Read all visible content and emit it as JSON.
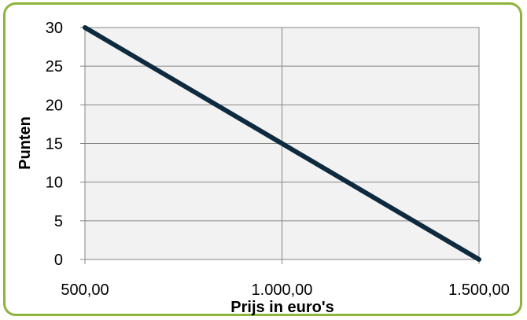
{
  "chart_data": {
    "type": "line",
    "title": "",
    "xlabel": "Prijs in euro's",
    "ylabel": "Punten",
    "x_ticks": [
      "500,00",
      "1.000,00",
      "1.500,00"
    ],
    "y_ticks": [
      "0",
      "5",
      "10",
      "15",
      "20",
      "25",
      "30"
    ],
    "xlim": [
      500,
      1500
    ],
    "ylim": [
      0,
      30
    ],
    "grid": true,
    "series": [
      {
        "x": [
          500,
          1000,
          1500
        ],
        "y": [
          30,
          15,
          0
        ]
      }
    ],
    "colors": {
      "line": "#0e2a3f",
      "plot_bg": "#f2f2f2",
      "grid": "#868686",
      "frame": "#8db43c"
    }
  }
}
